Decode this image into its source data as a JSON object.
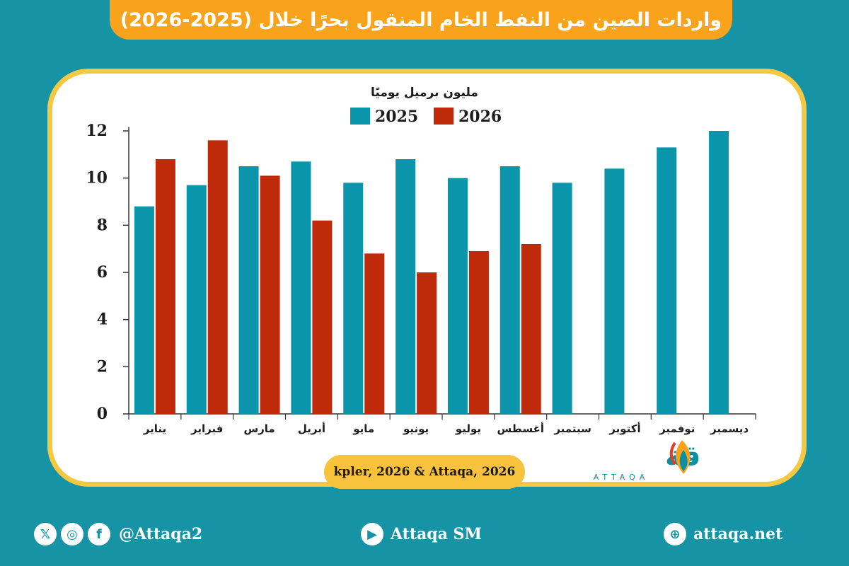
{
  "title": "واردات الصين من النفط الخام المنقول بحرًا خلال (2025-2026)",
  "source": "kpler, 2026 & Attaqa, 2026",
  "brand": {
    "name_ar": "الطاقة",
    "name_en": "ATTAQA"
  },
  "footer": {
    "social_handle": "@Attaqa2",
    "youtube": "Attaqa SM",
    "website": "attaqa.net",
    "icons": [
      "x-icon",
      "instagram-icon",
      "facebook-icon",
      "youtube-icon",
      "globe-icon"
    ]
  },
  "colors": {
    "background": "#1693a5",
    "series_2025": "#0b95aa",
    "series_2026": "#bf2a0a",
    "title_bar": "#f9a21b",
    "card_border": "#f5c842"
  },
  "chart_data": {
    "type": "bar",
    "ylabel": "مليون برميل يوميًا",
    "ylim": [
      0,
      12
    ],
    "yticks": [
      0,
      2,
      4,
      6,
      8,
      10,
      12
    ],
    "legend_position": "top",
    "grid": false,
    "categories": [
      "يناير",
      "فبراير",
      "مارس",
      "أبريل",
      "مايو",
      "يونيو",
      "يوليو",
      "أغسطس",
      "سبتمبر",
      "أكتوبر",
      "نوفمبر",
      "ديسمبر"
    ],
    "series": [
      {
        "name": "2025",
        "color": "#0b95aa",
        "values": [
          8.8,
          9.7,
          10.5,
          10.7,
          9.8,
          10.8,
          10.0,
          10.5,
          9.8,
          10.4,
          11.3,
          12.0
        ]
      },
      {
        "name": "2026",
        "color": "#bf2a0a",
        "values": [
          10.8,
          11.6,
          10.1,
          8.2,
          6.8,
          6.0,
          6.9,
          7.2,
          null,
          null,
          null,
          null
        ]
      }
    ]
  }
}
